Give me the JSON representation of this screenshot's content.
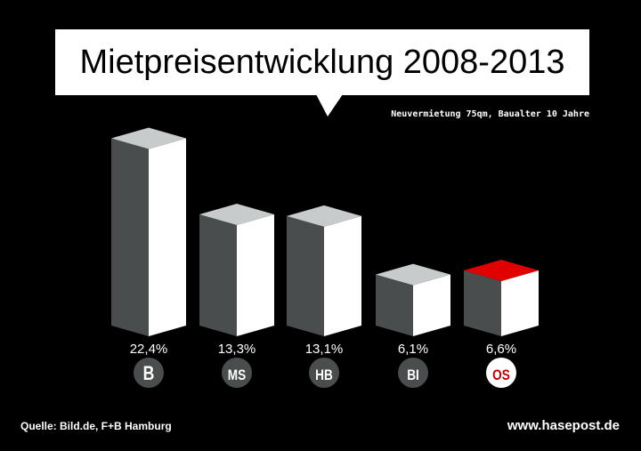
{
  "header": {
    "title": "Mietpreisentwicklung 2008-2013",
    "subtitle": "Neuvermietung 75qm, Baualter 10 Jahre"
  },
  "footer": {
    "source": "Quelle: Bild.de, F+B Hamburg",
    "site": "www.hasepost.de"
  },
  "chart_data": {
    "type": "bar",
    "title": "Mietpreisentwicklung 2008-2013",
    "subtitle": "Neuvermietung 75qm, Baualter 10 Jahre",
    "categories": [
      "B",
      "MS",
      "HB",
      "BI",
      "OS"
    ],
    "values": [
      22.4,
      13.3,
      13.1,
      6.1,
      6.6
    ],
    "value_labels": [
      "22,4%",
      "13,3%",
      "13,1%",
      "6,1%",
      "6,6%"
    ],
    "unit": "%",
    "highlight": "OS",
    "colors": {
      "top": "#c8cbcb",
      "left": "#4a4d4d",
      "right": "#ffffff",
      "highlight_top": "#e00000",
      "highlight_text": "#c00000",
      "badge": "#4a4d4d"
    }
  }
}
